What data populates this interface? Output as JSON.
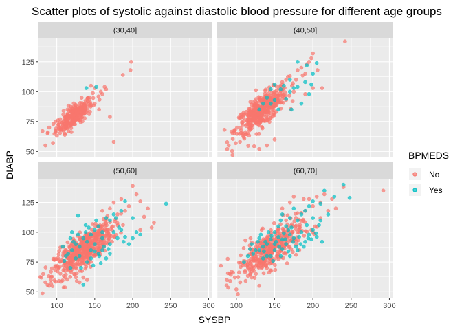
{
  "chart_data": {
    "type": "scatter",
    "title": "Scatter plots of systolic against diastolic blood pressure for different age groups",
    "xlabel": "SYSBP",
    "ylabel": "DIABP",
    "xlim": [
      75,
      305
    ],
    "ylim": [
      45,
      145
    ],
    "x_ticks": [
      100,
      150,
      200,
      250,
      300
    ],
    "y_ticks": [
      50,
      75,
      100,
      125
    ],
    "grid": true,
    "facet_variable": "age group",
    "legend": {
      "title": "BPMEDS",
      "position": "right",
      "entries": [
        {
          "label": "No",
          "color": "#F8766D"
        },
        {
          "label": "Yes",
          "color": "#00BFC4"
        }
      ]
    },
    "panels": [
      {
        "label": "(30,40]",
        "no_cloud": {
          "center": [
            123,
            80
          ],
          "n": 260,
          "sd": [
            12,
            7
          ],
          "corr": 0.75
        },
        "no_outliers": [
          [
            198,
            125
          ],
          [
            197,
            118
          ],
          [
            187,
            114
          ],
          [
            165,
            102
          ],
          [
            158,
            100
          ],
          [
            160,
            98
          ],
          [
            163,
            104
          ],
          [
            170,
            79
          ],
          [
            175,
            58
          ],
          [
            88,
            65
          ],
          [
            95,
            57
          ],
          [
            90,
            70
          ],
          [
            145,
            105
          ],
          [
            150,
            103
          ],
          [
            155,
            96
          ],
          [
            85,
            55
          ]
        ],
        "yes_points": [
          [
            152,
            104
          ],
          [
            139,
            103
          ]
        ]
      },
      {
        "label": "(40,50]",
        "no_cloud": {
          "center": [
            133,
            84
          ],
          "n": 420,
          "sd": [
            17,
            10
          ],
          "corr": 0.78
        },
        "no_outliers": [
          [
            242,
            142
          ],
          [
            200,
            132
          ],
          [
            198,
            128
          ],
          [
            195,
            125
          ],
          [
            192,
            123
          ],
          [
            206,
            118
          ],
          [
            190,
            115
          ],
          [
            185,
            120
          ],
          [
            180,
            118
          ],
          [
            178,
            110
          ],
          [
            170,
            113
          ],
          [
            88,
            52
          ],
          [
            90,
            55
          ],
          [
            95,
            47
          ],
          [
            130,
            52
          ],
          [
            140,
            55
          ],
          [
            150,
            60
          ],
          [
            212,
            103
          ],
          [
            200,
            103
          ],
          [
            175,
            100
          ],
          [
            190,
            98
          ],
          [
            165,
            110
          ],
          [
            160,
            108
          ]
        ],
        "yes_points": [
          [
            180,
            125
          ],
          [
            192,
            122
          ],
          [
            205,
            124
          ],
          [
            200,
            115
          ],
          [
            170,
            110
          ],
          [
            162,
            105
          ],
          [
            150,
            106
          ],
          [
            180,
            104
          ],
          [
            190,
            108
          ],
          [
            175,
            103
          ],
          [
            158,
            102
          ],
          [
            150,
            93
          ],
          [
            140,
            95
          ],
          [
            155,
            85
          ],
          [
            145,
            90
          ],
          [
            165,
            94
          ],
          [
            170,
            100
          ],
          [
            172,
            85
          ],
          [
            185,
            90
          ],
          [
            195,
            98
          ],
          [
            198,
            106
          ],
          [
            135,
            90
          ],
          [
            130,
            85
          ],
          [
            145,
            102
          ]
        ]
      },
      {
        "label": "(50,60]",
        "no_cloud": {
          "center": [
            135,
            85
          ],
          "n": 520,
          "sd": [
            19,
            11
          ],
          "corr": 0.77
        },
        "no_outliers": [
          [
            200,
            139
          ],
          [
            205,
            132
          ],
          [
            185,
            128
          ],
          [
            210,
            126
          ],
          [
            195,
            122
          ],
          [
            220,
            120
          ],
          [
            190,
            118
          ],
          [
            215,
            113
          ],
          [
            228,
            108
          ],
          [
            225,
            104
          ],
          [
            210,
            102
          ],
          [
            85,
            58
          ],
          [
            90,
            55
          ],
          [
            92,
            60
          ],
          [
            82,
            65
          ],
          [
            130,
            58
          ],
          [
            135,
            62
          ],
          [
            140,
            60
          ],
          [
            175,
            125
          ],
          [
            180,
            115
          ],
          [
            170,
            120
          ],
          [
            160,
            118
          ]
        ],
        "yes_points": [
          [
            244,
            124
          ],
          [
            190,
            126
          ],
          [
            185,
            118
          ],
          [
            175,
            115
          ],
          [
            170,
            110
          ],
          [
            165,
            112
          ],
          [
            200,
            112
          ],
          [
            178,
            112
          ],
          [
            205,
            100
          ],
          [
            210,
            98
          ],
          [
            190,
            96
          ],
          [
            185,
            102
          ],
          [
            160,
            100
          ],
          [
            155,
            105
          ],
          [
            150,
            102
          ],
          [
            145,
            98
          ],
          [
            140,
            92
          ],
          [
            130,
            88
          ],
          [
            125,
            90
          ],
          [
            120,
            85
          ],
          [
            135,
            95
          ],
          [
            140,
            75
          ],
          [
            145,
            78
          ],
          [
            130,
            80
          ],
          [
            125,
            78
          ],
          [
            165,
            78
          ],
          [
            155,
            82
          ],
          [
            160,
            85
          ],
          [
            170,
            90
          ],
          [
            180,
            95
          ],
          [
            135,
            56
          ],
          [
            120,
            100
          ],
          [
            128,
            114
          ],
          [
            118,
            95
          ],
          [
            138,
            100
          ],
          [
            150,
            90
          ],
          [
            160,
            95
          ],
          [
            175,
            100
          ],
          [
            182,
            104
          ],
          [
            145,
            85
          ],
          [
            150,
            84
          ],
          [
            156,
            80
          ],
          [
            162,
            88
          ],
          [
            170,
            82
          ],
          [
            112,
            80
          ],
          [
            110,
            76
          ],
          [
            108,
            88
          ],
          [
            132,
            70
          ],
          [
            148,
            72
          ],
          [
            158,
            74
          ],
          [
            168,
            86
          ],
          [
            188,
            92
          ],
          [
            195,
            90
          ],
          [
            200,
            95
          ],
          [
            142,
            104
          ],
          [
            152,
            110
          ],
          [
            138,
            106
          ],
          [
            128,
            98
          ],
          [
            122,
            92
          ],
          [
            118,
            70
          ],
          [
            115,
            82
          ]
        ]
      },
      {
        "label": "(60,70]",
        "no_cloud": {
          "center": [
            143,
            85
          ],
          "n": 380,
          "sd": [
            21,
            11
          ],
          "corr": 0.7
        },
        "no_outliers": [
          [
            292,
            135
          ],
          [
            240,
            138
          ],
          [
            225,
            128
          ],
          [
            215,
            132
          ],
          [
            210,
            125
          ],
          [
            205,
            130
          ],
          [
            200,
            122
          ],
          [
            195,
            128
          ],
          [
            190,
            118
          ],
          [
            180,
            116
          ],
          [
            210,
            112
          ],
          [
            220,
            118
          ],
          [
            230,
            120
          ],
          [
            188,
            128
          ],
          [
            100,
            52
          ],
          [
            102,
            48
          ],
          [
            105,
            58
          ],
          [
            98,
            62
          ],
          [
            120,
            62
          ],
          [
            130,
            55
          ],
          [
            140,
            70
          ],
          [
            170,
            125
          ],
          [
            175,
            130
          ],
          [
            160,
            120
          ],
          [
            165,
            110
          ]
        ],
        "yes_points": [
          [
            240,
            140
          ],
          [
            248,
            129
          ],
          [
            228,
            130
          ],
          [
            215,
            135
          ],
          [
            210,
            124
          ],
          [
            200,
            126
          ],
          [
            195,
            122
          ],
          [
            190,
            118
          ],
          [
            185,
            115
          ],
          [
            200,
            112
          ],
          [
            210,
            110
          ],
          [
            220,
            115
          ],
          [
            175,
            120
          ],
          [
            160,
            115
          ],
          [
            158,
            110
          ],
          [
            170,
            112
          ],
          [
            180,
            110
          ],
          [
            165,
            105
          ],
          [
            150,
            100
          ],
          [
            155,
            96
          ],
          [
            145,
            94
          ],
          [
            160,
            94
          ],
          [
            170,
            98
          ],
          [
            150,
            90
          ],
          [
            140,
            90
          ],
          [
            135,
            88
          ],
          [
            130,
            85
          ],
          [
            150,
            85
          ],
          [
            160,
            86
          ],
          [
            145,
            80
          ],
          [
            140,
            80
          ],
          [
            130,
            95
          ],
          [
            120,
            90
          ],
          [
            125,
            85
          ],
          [
            170,
            80
          ],
          [
            180,
            85
          ],
          [
            190,
            92
          ],
          [
            195,
            98
          ],
          [
            205,
            96
          ],
          [
            165,
            90
          ],
          [
            155,
            105
          ],
          [
            175,
            95
          ],
          [
            185,
            100
          ],
          [
            135,
            78
          ],
          [
            148,
            76
          ],
          [
            158,
            80
          ],
          [
            110,
            75
          ],
          [
            115,
            80
          ],
          [
            188,
            88
          ],
          [
            200,
            102
          ],
          [
            212,
            92
          ],
          [
            168,
            84
          ],
          [
            178,
            88
          ],
          [
            142,
            100
          ],
          [
            132,
            98
          ],
          [
            138,
            92
          ],
          [
            152,
            92
          ],
          [
            162,
            99
          ],
          [
            122,
            82
          ],
          [
            128,
            92
          ],
          [
            118,
            86
          ],
          [
            198,
            94
          ],
          [
            208,
            106
          ],
          [
            192,
            106
          ],
          [
            182,
            96
          ],
          [
            172,
            104
          ],
          [
            168,
            102
          ],
          [
            146,
            97
          ],
          [
            136,
            84
          ],
          [
            156,
            88
          ],
          [
            164,
            94
          ],
          [
            174,
            92
          ],
          [
            184,
            90
          ],
          [
            194,
            95
          ],
          [
            204,
            99
          ]
        ]
      }
    ]
  }
}
